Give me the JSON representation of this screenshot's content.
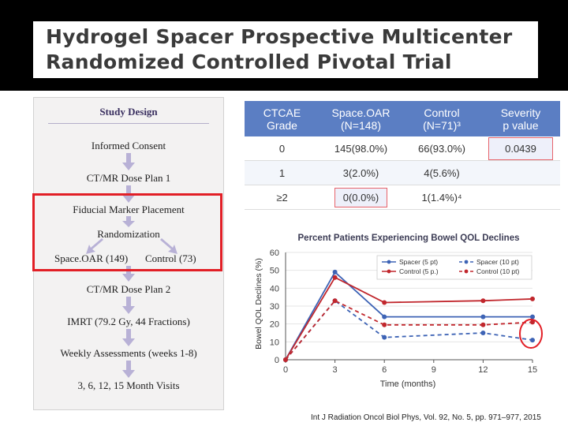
{
  "header": {
    "title_line1": "Hydrogel Spacer Prospective Multicenter",
    "title_line2": "Randomized Controlled Pivotal Trial"
  },
  "study_design": {
    "title": "Study Design",
    "steps": [
      "Informed Consent",
      "CT/MR Dose Plan 1",
      "Fiducial Marker Placement",
      "Randomization",
      "Space.OAR (149)",
      "Control (73)",
      "CT/MR Dose Plan 2",
      "IMRT (79.2 Gy, 44 Fractions)",
      "Weekly Assessments (weeks 1-8)",
      "3, 6, 12, 15 Month Visits"
    ]
  },
  "table": {
    "headers": [
      [
        "CTCAE",
        "Grade"
      ],
      [
        "Space.OAR",
        "(N=148)"
      ],
      [
        "Control",
        "(N=71)³"
      ],
      [
        "Severity",
        "p value"
      ]
    ],
    "rows": [
      [
        "0",
        "145(98.0%)",
        "66(93.0%)",
        "0.0439"
      ],
      [
        "1",
        "3(2.0%)",
        "4(5.6%)",
        ""
      ],
      [
        "≥2",
        "0(0.0%)",
        "1(1.4%)⁴",
        ""
      ]
    ]
  },
  "chart_data": {
    "type": "line",
    "title": "Percent Patients Experiencing Bowel QOL Declines",
    "xlabel": "Time (months)",
    "ylabel": "Bowel QOL Declines (%)",
    "x_ticks": [
      0,
      3,
      6,
      9,
      12,
      15
    ],
    "y_ticks": [
      0,
      10,
      20,
      30,
      40,
      50,
      60
    ],
    "xlim": [
      0,
      15
    ],
    "ylim": [
      0,
      60
    ],
    "legend_position": "top-right",
    "series": [
      {
        "name": "Spacer (5 pt)",
        "color": "#3d63b5",
        "dashed": false,
        "x": [
          0,
          3,
          6,
          12,
          15
        ],
        "y": [
          0,
          49,
          24,
          24,
          24
        ]
      },
      {
        "name": "Control (5 p.)",
        "color": "#c1272d",
        "dashed": false,
        "x": [
          0,
          3,
          6,
          12,
          15
        ],
        "y": [
          0,
          46,
          32,
          33,
          34
        ]
      },
      {
        "name": "Spacer (10 pt)",
        "color": "#3d63b5",
        "dashed": true,
        "x": [
          0,
          3,
          6,
          12,
          15
        ],
        "y": [
          0,
          33,
          12.5,
          15,
          11
        ]
      },
      {
        "name": "Control (10 pt)",
        "color": "#c1272d",
        "dashed": true,
        "x": [
          0,
          3,
          6,
          12,
          15
        ],
        "y": [
          0,
          33,
          19.5,
          19.5,
          21
        ]
      }
    ]
  },
  "citation": "Int J Radiation Oncol Biol Phys, Vol. 92, No. 5, pp. 971–977, 2015"
}
